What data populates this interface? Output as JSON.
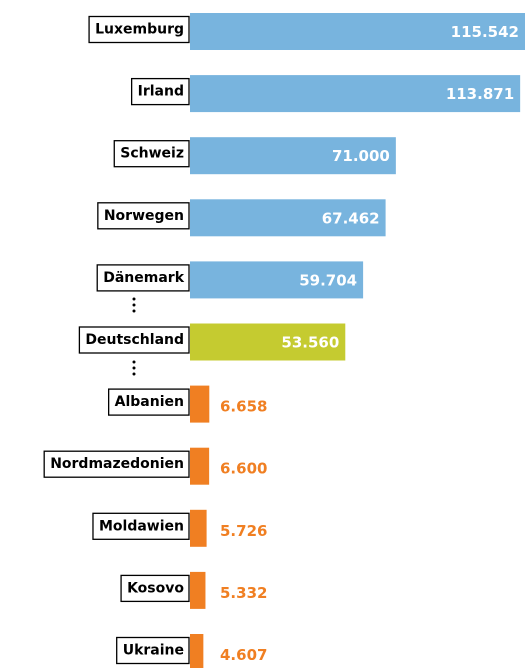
{
  "chart_data": {
    "type": "bar",
    "categories": [
      "Luxemburg",
      "Irland",
      "Schweiz",
      "Norwegen",
      "Dänemark",
      "Deutschland",
      "Albanien",
      "Nordmazedonien",
      "Moldawien",
      "Kosovo",
      "Ukraine"
    ],
    "values": [
      115542,
      113871,
      71000,
      67462,
      59704,
      53560,
      6658,
      6600,
      5726,
      5332,
      4607
    ],
    "value_labels": [
      "115.542",
      "113.871",
      "71.000",
      "67.462",
      "59.704",
      "53.560",
      "6.658",
      "6.600",
      "5.726",
      "5.332",
      "4.607"
    ],
    "colors": [
      "#78b4de",
      "#78b4de",
      "#78b4de",
      "#78b4de",
      "#78b4de",
      "#c5cb30",
      "#f07f22",
      "#f07f22",
      "#f07f22",
      "#f07f22",
      "#f07f22"
    ]
  }
}
